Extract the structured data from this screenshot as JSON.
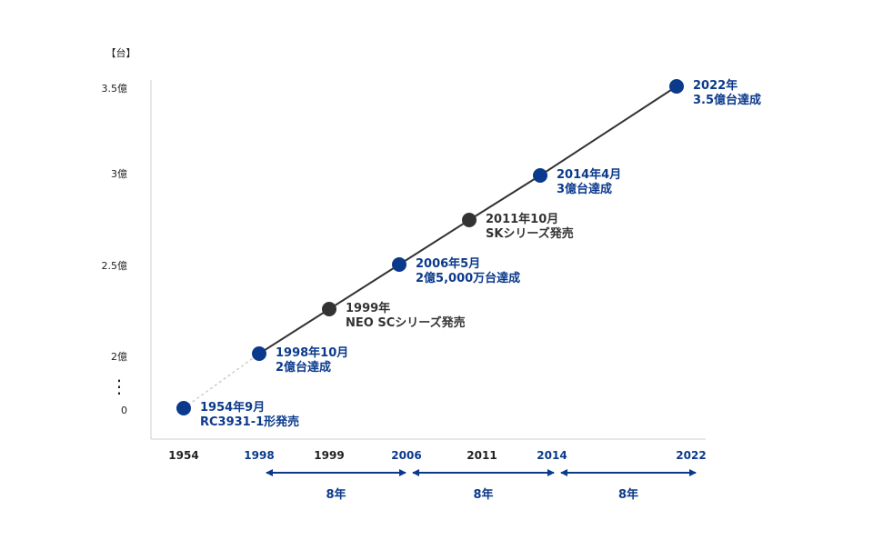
{
  "colors": {
    "accent": "#0b3a8c",
    "dark": "#333333",
    "axis": "#cfcfcf",
    "text": "#222222",
    "dashed": "#cccccc"
  },
  "chart_data": {
    "type": "line",
    "unit_label": "【台】",
    "y_axis": {
      "ticks": [
        {
          "value": 0,
          "label": "0"
        },
        {
          "value": 2,
          "label": "2億"
        },
        {
          "value": 2.5,
          "label": "2.5億"
        },
        {
          "value": 3,
          "label": "3億"
        },
        {
          "value": 3.5,
          "label": "3.5億"
        }
      ],
      "axis_break": "⋮",
      "break_between": [
        0,
        2
      ]
    },
    "x_axis": {
      "ticks": [
        {
          "label": "1954",
          "highlight": false
        },
        {
          "label": "1998",
          "highlight": true
        },
        {
          "label": "1999",
          "highlight": false
        },
        {
          "label": "2006",
          "highlight": true
        },
        {
          "label": "2011",
          "highlight": false
        },
        {
          "label": "2014",
          "highlight": true
        },
        {
          "label": "2022",
          "highlight": true
        }
      ]
    },
    "points": [
      {
        "x": "1954",
        "y": 0,
        "color": "accent",
        "line1": "1954年9月",
        "line2": "RC3931-1形発売"
      },
      {
        "x": "1998",
        "y": 2,
        "color": "accent",
        "line1": "1998年10月",
        "line2": "2億台達成"
      },
      {
        "x": "1999",
        "y": 2.25,
        "color": "dark",
        "line1": "1999年",
        "line2": "NEO SCシリーズ発売"
      },
      {
        "x": "2006",
        "y": 2.5,
        "color": "accent",
        "line1": "2006年5月",
        "line2": "2億5,000万台達成"
      },
      {
        "x": "2011",
        "y": 2.75,
        "color": "dark",
        "line1": "2011年10月",
        "line2": "SKシリーズ発売"
      },
      {
        "x": "2014",
        "y": 3,
        "color": "accent",
        "line1": "2014年4月",
        "line2": "3億台達成"
      },
      {
        "x": "2022",
        "y": 3.5,
        "color": "accent",
        "line1": "2022年",
        "line2": "3.5億台達成"
      }
    ],
    "spans": [
      {
        "from": "1998",
        "to": "2006",
        "label": "8年"
      },
      {
        "from": "2006",
        "to": "2014",
        "label": "8年"
      },
      {
        "from": "2014",
        "to": "2022",
        "label": "8年"
      }
    ],
    "grid": false,
    "legend": "none"
  }
}
